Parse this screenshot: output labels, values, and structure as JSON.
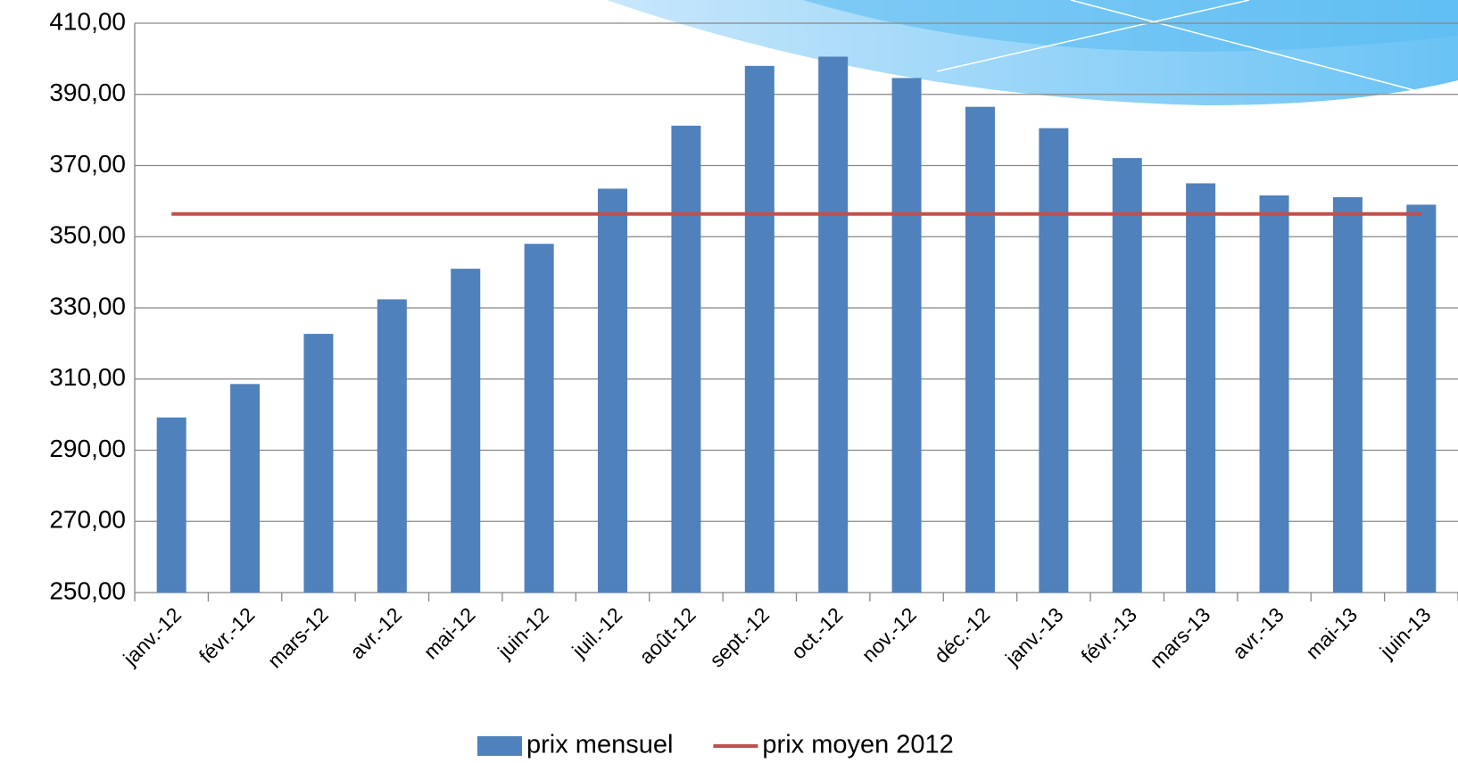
{
  "chart_data": {
    "type": "bar",
    "categories": [
      "janv.-12",
      "févr.-12",
      "mars-12",
      "avr.-12",
      "mai-12",
      "juin-12",
      "juil.-12",
      "août-12",
      "sept.-12",
      "oct.-12",
      "nov.-12",
      "déc.-12",
      "janv.-13",
      "févr.-13",
      "mars-13",
      "avr.-13",
      "mai-13",
      "juin-13"
    ],
    "series": [
      {
        "name": "prix mensuel",
        "type": "bar",
        "color": "#4f81bd",
        "values": [
          299.2,
          308.6,
          322.7,
          332.4,
          341.0,
          348.0,
          363.5,
          381.2,
          398.0,
          400.6,
          394.6,
          386.5,
          380.5,
          372.1,
          365.0,
          361.6,
          361.1,
          359.0
        ]
      },
      {
        "name": "prix moyen 2012",
        "type": "line",
        "color": "#c0504d",
        "values": [
          356.4,
          356.4,
          356.4,
          356.4,
          356.4,
          356.4,
          356.4,
          356.4,
          356.4,
          356.4,
          356.4,
          356.4,
          356.4,
          356.4,
          356.4,
          356.4,
          356.4,
          356.4
        ]
      }
    ],
    "ylim": [
      250,
      410
    ],
    "yticks": [
      {
        "value": 250,
        "label": "250,00"
      },
      {
        "value": 270,
        "label": "270,00"
      },
      {
        "value": 290,
        "label": "290,00"
      },
      {
        "value": 310,
        "label": "310,00"
      },
      {
        "value": 330,
        "label": "330,00"
      },
      {
        "value": 350,
        "label": "350,00"
      },
      {
        "value": 370,
        "label": "370,00"
      },
      {
        "value": 390,
        "label": "390,00"
      },
      {
        "value": 410,
        "label": "410,00"
      }
    ],
    "grid": true
  }
}
